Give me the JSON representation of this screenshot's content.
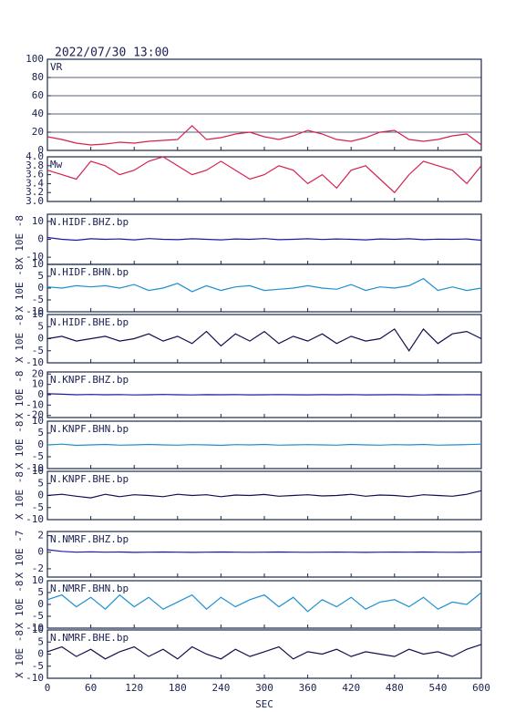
{
  "header": {
    "title": "2022/07/30 13:00"
  },
  "chart_data": [
    {
      "type": "line",
      "title": "VR",
      "x": [
        0,
        20,
        40,
        60,
        80,
        100,
        120,
        140,
        160,
        180,
        200,
        220,
        240,
        260,
        280,
        300,
        320,
        340,
        360,
        380,
        400,
        420,
        440,
        460,
        480,
        500,
        520,
        540,
        560,
        580,
        600
      ],
      "series": [
        {
          "color": "#d6204e",
          "values": [
            15,
            12,
            8,
            6,
            7,
            9,
            8,
            10,
            11,
            12,
            27,
            12,
            14,
            18,
            20,
            15,
            12,
            16,
            22,
            18,
            12,
            10,
            14,
            20,
            22,
            12,
            10,
            12,
            16,
            18,
            6
          ]
        }
      ],
      "xlim": [
        0,
        600
      ],
      "ylim": [
        0,
        100
      ],
      "yticks": [
        0,
        20,
        40,
        60,
        80,
        100
      ],
      "grid": true
    },
    {
      "type": "line",
      "title": "Mw",
      "x": [
        0,
        20,
        40,
        60,
        80,
        100,
        120,
        140,
        160,
        180,
        200,
        220,
        240,
        260,
        280,
        300,
        320,
        340,
        360,
        380,
        400,
        420,
        440,
        460,
        480,
        500,
        520,
        540,
        560,
        580,
        600
      ],
      "series": [
        {
          "color": "#d6204e",
          "values": [
            3.7,
            3.6,
            3.5,
            3.9,
            3.8,
            3.6,
            3.7,
            3.9,
            4.0,
            3.8,
            3.6,
            3.7,
            3.9,
            3.7,
            3.5,
            3.6,
            3.8,
            3.7,
            3.4,
            3.6,
            3.3,
            3.7,
            3.8,
            3.5,
            3.2,
            3.6,
            3.9,
            3.8,
            3.7,
            3.4,
            3.8
          ]
        }
      ],
      "xlim": [
        0,
        600
      ],
      "ylim": [
        3,
        4
      ],
      "yticks": [
        {
          "value": 3,
          "label": "3.0"
        },
        {
          "value": 3.2,
          "label": "3.2"
        },
        {
          "value": 3.4,
          "label": "3.4"
        },
        {
          "value": 3.6,
          "label": "3.6"
        },
        {
          "value": 3.8,
          "label": "3.8"
        },
        {
          "value": 4,
          "label": "4.0"
        }
      ],
      "grid": false
    },
    {
      "type": "line",
      "title": "N.HIDF.BHZ.bp",
      "unit": "X 10E -8",
      "x": [
        0,
        20,
        40,
        60,
        80,
        100,
        120,
        140,
        160,
        180,
        200,
        220,
        240,
        260,
        280,
        300,
        320,
        340,
        360,
        380,
        400,
        420,
        440,
        460,
        480,
        500,
        520,
        540,
        560,
        580,
        600
      ],
      "series": [
        {
          "color": "#1a1aa6",
          "values": [
            1,
            0,
            -0.5,
            0.3,
            0,
            0.2,
            -0.3,
            0.4,
            0,
            -0.2,
            0.3,
            0,
            -0.3,
            0.2,
            0,
            0.4,
            -0.2,
            0,
            0.3,
            -0.1,
            0.2,
            0,
            -0.3,
            0.2,
            0,
            0.3,
            -0.2,
            0.1,
            0,
            0.2,
            -0.5
          ]
        }
      ],
      "xlim": [
        0,
        600
      ],
      "ylim": [
        -14,
        14
      ],
      "yticks": [
        -10,
        0,
        10
      ],
      "grid": false
    },
    {
      "type": "line",
      "title": "N.HIDF.BHN.bp",
      "unit": "X 10E -8",
      "x": [
        0,
        20,
        40,
        60,
        80,
        100,
        120,
        140,
        160,
        180,
        200,
        220,
        240,
        260,
        280,
        300,
        320,
        340,
        360,
        380,
        400,
        420,
        440,
        460,
        480,
        500,
        520,
        540,
        560,
        580,
        600
      ],
      "series": [
        {
          "color": "#1e90d0",
          "values": [
            0.5,
            0,
            1,
            0.5,
            1,
            0,
            1.5,
            -1,
            0,
            2,
            -1.5,
            1,
            -1,
            0.5,
            1,
            -1,
            -0.5,
            0,
            1,
            0,
            -0.5,
            1.5,
            -1,
            0.5,
            0,
            1,
            4,
            -1,
            0.5,
            -1,
            0
          ]
        }
      ],
      "xlim": [
        0,
        600
      ],
      "ylim": [
        -10,
        10
      ],
      "yticks": [
        -10,
        -5,
        0,
        5,
        10
      ],
      "grid": false
    },
    {
      "type": "line",
      "title": "N.HIDF.BHE.bp",
      "unit": "X 10E -8",
      "x": [
        0,
        20,
        40,
        60,
        80,
        100,
        120,
        140,
        160,
        180,
        200,
        220,
        240,
        260,
        280,
        300,
        320,
        340,
        360,
        380,
        400,
        420,
        440,
        460,
        480,
        500,
        520,
        540,
        560,
        580,
        600
      ],
      "series": [
        {
          "color": "#101050",
          "values": [
            0,
            1,
            -1,
            0,
            1,
            -1,
            0,
            2,
            -1,
            1,
            -2,
            3,
            -3,
            2,
            -1,
            3,
            -2,
            1,
            -1,
            2,
            -2,
            1,
            -1,
            0,
            4,
            -5,
            4,
            -2,
            2,
            3,
            0
          ]
        }
      ],
      "xlim": [
        0,
        600
      ],
      "ylim": [
        -10,
        10
      ],
      "yticks": [
        -10,
        -5,
        0,
        5,
        10
      ],
      "grid": false
    },
    {
      "type": "line",
      "title": "N.KNPF.BHZ.bp",
      "unit": "X 10E -8",
      "x": [
        0,
        20,
        40,
        60,
        80,
        100,
        120,
        140,
        160,
        180,
        200,
        220,
        240,
        260,
        280,
        300,
        320,
        340,
        360,
        380,
        400,
        420,
        440,
        460,
        480,
        500,
        520,
        540,
        560,
        580,
        600
      ],
      "series": [
        {
          "color": "#1a1aa6",
          "values": [
            1,
            0.5,
            0,
            0.3,
            0,
            0.2,
            -0.2,
            0,
            0.3,
            0,
            -0.2,
            0.1,
            0,
            0.2,
            -0.1,
            0,
            0.2,
            0,
            -0.1,
            0.1,
            0,
            0.2,
            -0.1,
            0,
            0.1,
            0,
            -0.2,
            0.1,
            0,
            0.1,
            0
          ]
        }
      ],
      "xlim": [
        0,
        600
      ],
      "ylim": [
        -22,
        22
      ],
      "yticks": [
        -20,
        -10,
        0,
        10,
        20
      ],
      "grid": false
    },
    {
      "type": "line",
      "title": "N.KNPF.BHN.bp",
      "unit": "X 10E -8",
      "x": [
        0,
        20,
        40,
        60,
        80,
        100,
        120,
        140,
        160,
        180,
        200,
        220,
        240,
        260,
        280,
        300,
        320,
        340,
        360,
        380,
        400,
        420,
        440,
        460,
        480,
        500,
        520,
        540,
        560,
        580,
        600
      ],
      "series": [
        {
          "color": "#1e90d0",
          "values": [
            0,
            0.3,
            -0.2,
            0,
            0.2,
            -0.1,
            0,
            0.2,
            0,
            -0.1,
            0.1,
            0,
            -0.2,
            0.1,
            0,
            0.2,
            -0.1,
            0,
            0.1,
            0,
            -0.1,
            0.2,
            0,
            -0.1,
            0.1,
            0,
            0.2,
            -0.1,
            0,
            0.1,
            0.3
          ]
        }
      ],
      "xlim": [
        0,
        600
      ],
      "ylim": [
        -10,
        10
      ],
      "yticks": [
        -10,
        -5,
        0,
        5,
        10
      ],
      "grid": false
    },
    {
      "type": "line",
      "title": "N.KNPF.BHE.bp",
      "unit": "X 10E -8",
      "x": [
        0,
        20,
        40,
        60,
        80,
        100,
        120,
        140,
        160,
        180,
        200,
        220,
        240,
        260,
        280,
        300,
        320,
        340,
        360,
        380,
        400,
        420,
        440,
        460,
        480,
        500,
        520,
        540,
        560,
        580,
        600
      ],
      "series": [
        {
          "color": "#101050",
          "values": [
            0,
            0.5,
            -0.3,
            -1,
            0.5,
            -0.5,
            0.3,
            0,
            -0.5,
            0.5,
            0,
            0.3,
            -0.5,
            0.2,
            0,
            0.4,
            -0.3,
            0,
            0.3,
            -0.2,
            0,
            0.5,
            -0.3,
            0.2,
            0,
            -0.5,
            0.3,
            0,
            -0.3,
            0.5,
            2
          ]
        }
      ],
      "xlim": [
        0,
        600
      ],
      "ylim": [
        -10,
        10
      ],
      "yticks": [
        -10,
        -5,
        0,
        5,
        10
      ],
      "grid": false
    },
    {
      "type": "line",
      "title": "N.NMRF.BHZ.bp",
      "unit": "X 10E -7",
      "x": [
        0,
        20,
        40,
        60,
        80,
        100,
        120,
        140,
        160,
        180,
        200,
        220,
        240,
        260,
        280,
        300,
        320,
        340,
        360,
        380,
        400,
        420,
        440,
        460,
        480,
        500,
        520,
        540,
        560,
        580,
        600
      ],
      "series": [
        {
          "color": "#1a1aa6",
          "values": [
            0.3,
            0.1,
            0,
            0.05,
            0,
            0.03,
            -0.02,
            0,
            0.02,
            0,
            -0.02,
            0,
            0.02,
            0,
            -0.01,
            0,
            0.02,
            0,
            -0.01,
            0,
            0.01,
            0,
            -0.02,
            0,
            0.01,
            0,
            0.02,
            0,
            -0.01,
            0,
            0.03
          ]
        }
      ],
      "xlim": [
        0,
        600
      ],
      "ylim": [
        -3,
        2.5
      ],
      "yticks": [
        -2,
        0,
        2
      ],
      "grid": false
    },
    {
      "type": "line",
      "title": "N.NMRF.BHN.bp",
      "unit": "X 10E -8",
      "x": [
        0,
        20,
        40,
        60,
        80,
        100,
        120,
        140,
        160,
        180,
        200,
        220,
        240,
        260,
        280,
        300,
        320,
        340,
        360,
        380,
        400,
        420,
        440,
        460,
        480,
        500,
        520,
        540,
        560,
        580,
        600
      ],
      "series": [
        {
          "color": "#1e90d0",
          "values": [
            2,
            4,
            -1,
            3,
            -2,
            4,
            -1,
            3,
            -2,
            1,
            4,
            -2,
            3,
            -1,
            2,
            4,
            -1,
            3,
            -3,
            2,
            -1,
            3,
            -2,
            1,
            2,
            -1,
            3,
            -2,
            1,
            0,
            5
          ]
        }
      ],
      "xlim": [
        0,
        600
      ],
      "ylim": [
        -10,
        10
      ],
      "yticks": [
        -10,
        -5,
        0,
        5,
        10
      ],
      "grid": false
    },
    {
      "type": "line",
      "title": "N.NMRF.BHE.bp",
      "unit": "X 10E -8",
      "x": [
        0,
        20,
        40,
        60,
        80,
        100,
        120,
        140,
        160,
        180,
        200,
        220,
        240,
        260,
        280,
        300,
        320,
        340,
        360,
        380,
        400,
        420,
        440,
        460,
        480,
        500,
        520,
        540,
        560,
        580,
        600
      ],
      "series": [
        {
          "color": "#101050",
          "values": [
            1,
            3,
            -1,
            2,
            -2,
            1,
            3,
            -1,
            2,
            -2,
            3,
            0,
            -2,
            2,
            -1,
            1,
            3,
            -2,
            1,
            0,
            2,
            -1,
            1,
            0,
            -1,
            2,
            0,
            1,
            -1,
            2,
            4
          ]
        }
      ],
      "xlim": [
        0,
        600
      ],
      "ylim": [
        -10,
        10
      ],
      "yticks": [
        -10,
        -5,
        0,
        5,
        10
      ],
      "grid": false,
      "xticks": [
        0,
        60,
        120,
        180,
        240,
        300,
        360,
        420,
        480,
        540,
        600
      ],
      "xlabel": "SEC"
    }
  ]
}
